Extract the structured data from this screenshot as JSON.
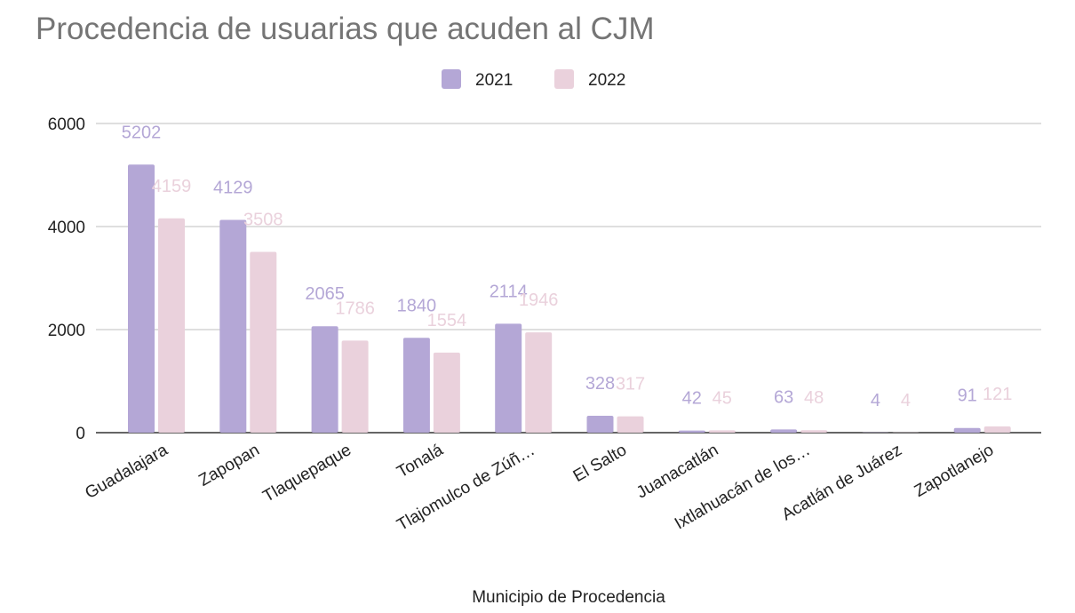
{
  "chart_data": {
    "type": "bar",
    "title": "Procedencia de usuarias que acuden al CJM",
    "xlabel": "Municipio de Procedencia",
    "ylabel": "",
    "ylim": [
      0,
      6000
    ],
    "yticks": [
      0,
      2000,
      4000,
      6000
    ],
    "grid": true,
    "legend_position": "top",
    "categories": [
      "Guadalajara",
      "Zapopan",
      "Tlaquepaque",
      "Tonalá",
      "Tlajomulco de Zúñ…",
      "El Salto",
      "Juanacatlán",
      "Ixtlahuacán de los…",
      "Acatlán de Juárez",
      "Zapotlanejo"
    ],
    "series": [
      {
        "name": "2021",
        "color": "#b4a7d6",
        "label_color": "#b4a7d6",
        "values": [
          5202,
          4129,
          2065,
          1840,
          2114,
          328,
          42,
          63,
          4,
          91
        ]
      },
      {
        "name": "2022",
        "color": "#ead1dc",
        "label_color": "#ead1dc",
        "values": [
          4159,
          3508,
          1786,
          1554,
          1946,
          317,
          45,
          48,
          4,
          121
        ]
      }
    ]
  }
}
